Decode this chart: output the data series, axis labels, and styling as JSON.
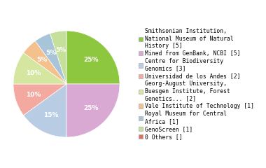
{
  "labels": [
    "Smithsonian Institution,\nNational Museum of Natural\nHistory [5]",
    "Mined from GenBank, NCBI [5]",
    "Centre for Biodiversity\nGenomics [3]",
    "Universidad de los Andes [2]",
    "Georg-August University,\nBuesgen Institute, Forest\nGenetics... [2]",
    "Vale Institute of Technology [1]",
    "Royal Museum for Central\nAfrica [1]",
    "GenoScreen [1]",
    "0 Others []"
  ],
  "values": [
    25,
    25,
    15,
    10,
    10,
    5,
    5,
    5,
    0
  ],
  "colors": [
    "#8dc63f",
    "#d9a9d4",
    "#b8cce4",
    "#f4a9a0",
    "#d4e6a0",
    "#f4c08c",
    "#a8c4d8",
    "#c5e09a",
    "#e07060"
  ],
  "pct_labels": [
    "25%",
    "25%",
    "15%",
    "10%",
    "10%",
    "5%",
    "5%",
    "5%",
    ""
  ],
  "startangle": 90,
  "text_color": "#ffffff",
  "fontsize_pct": 6.5,
  "legend_fontsize": 5.8
}
